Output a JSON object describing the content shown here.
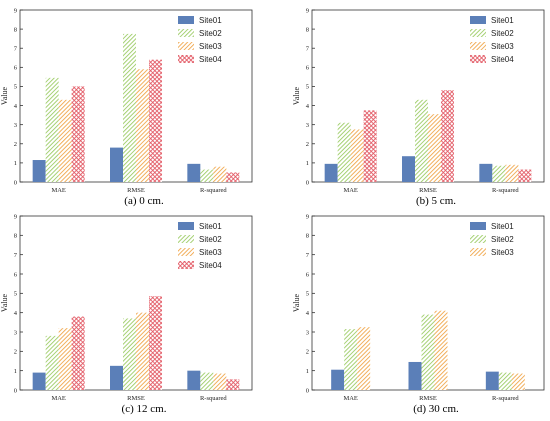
{
  "palette": {
    "series_colors": [
      "#5b7fb8",
      "#9ccc65",
      "#f0a64a",
      "#e35b66"
    ],
    "pattern_bg": [
      "#ffffff",
      "#ffffff",
      "#ffffff",
      "#ffffff"
    ]
  },
  "chart_data": [
    {
      "type": "bar",
      "caption": "(a) 0 cm.",
      "ylabel": "Value",
      "ylim": [
        0,
        9
      ],
      "yticks": [
        0,
        1,
        2,
        3,
        4,
        5,
        6,
        7,
        8,
        9
      ],
      "categories": [
        "MAE",
        "RMSE",
        "R-squared"
      ],
      "legend_position": "top-right",
      "series": [
        {
          "name": "Site01",
          "values": [
            1.15,
            1.8,
            0.95
          ]
        },
        {
          "name": "Site02",
          "values": [
            5.45,
            7.75,
            0.65
          ]
        },
        {
          "name": "Site03",
          "values": [
            4.3,
            5.9,
            0.8
          ]
        },
        {
          "name": "Site04",
          "values": [
            5.0,
            6.4,
            0.5
          ]
        }
      ]
    },
    {
      "type": "bar",
      "caption": "(b) 5 cm.",
      "ylabel": "Value",
      "ylim": [
        0,
        9
      ],
      "yticks": [
        0,
        1,
        2,
        3,
        4,
        5,
        6,
        7,
        8,
        9
      ],
      "categories": [
        "MAE",
        "RMSE",
        "R-squared"
      ],
      "legend_position": "top-right",
      "series": [
        {
          "name": "Site01",
          "values": [
            0.95,
            1.35,
            0.95
          ]
        },
        {
          "name": "Site02",
          "values": [
            3.1,
            4.3,
            0.85
          ]
        },
        {
          "name": "Site03",
          "values": [
            2.75,
            3.55,
            0.9
          ]
        },
        {
          "name": "Site04",
          "values": [
            3.75,
            4.8,
            0.65
          ]
        }
      ]
    },
    {
      "type": "bar",
      "caption": "(c) 12 cm.",
      "ylabel": "Value",
      "ylim": [
        0,
        9
      ],
      "yticks": [
        0,
        1,
        2,
        3,
        4,
        5,
        6,
        7,
        8,
        9
      ],
      "categories": [
        "MAE",
        "RMSE",
        "R-squared"
      ],
      "legend_position": "top-right",
      "series": [
        {
          "name": "Site01",
          "values": [
            0.9,
            1.25,
            1.0
          ]
        },
        {
          "name": "Site02",
          "values": [
            2.8,
            3.7,
            0.9
          ]
        },
        {
          "name": "Site03",
          "values": [
            3.2,
            4.0,
            0.85
          ]
        },
        {
          "name": "Site04",
          "values": [
            3.8,
            4.85,
            0.55
          ]
        }
      ]
    },
    {
      "type": "bar",
      "caption": "(d) 30 cm.",
      "ylabel": "Value",
      "ylim": [
        0,
        9
      ],
      "yticks": [
        0,
        1,
        2,
        3,
        4,
        5,
        6,
        7,
        8,
        9
      ],
      "categories": [
        "MAE",
        "RMSE",
        "R-squared"
      ],
      "legend_position": "top-right",
      "series": [
        {
          "name": "Site01",
          "values": [
            1.05,
            1.45,
            0.95
          ]
        },
        {
          "name": "Site02",
          "values": [
            3.15,
            3.9,
            0.9
          ]
        },
        {
          "name": "Site03",
          "values": [
            3.25,
            4.1,
            0.85
          ]
        }
      ]
    }
  ]
}
